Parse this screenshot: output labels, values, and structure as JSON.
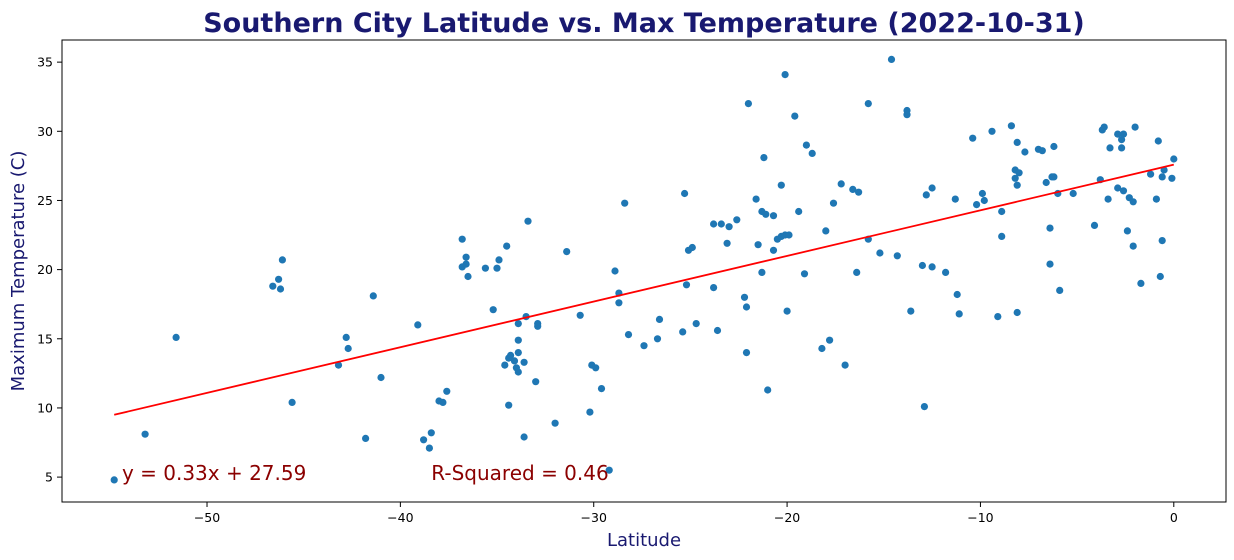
{
  "chart_data": {
    "type": "scatter",
    "title": "Southern City Latitude vs. Max Temperature (2022-10-31)",
    "xlabel": "Latitude",
    "ylabel": "Maximum Temperature (C)",
    "xlim": [
      -57.5,
      2.7
    ],
    "ylim": [
      3.2,
      36.6
    ],
    "xticks": [
      -50,
      -40,
      -30,
      -20,
      -10,
      0
    ],
    "xtick_labels": [
      "−50",
      "−40",
      "−30",
      "−20",
      "−10",
      "0"
    ],
    "yticks": [
      5,
      10,
      15,
      20,
      25,
      30,
      35
    ],
    "ytick_labels": [
      "5",
      "10",
      "15",
      "20",
      "25",
      "30",
      "35"
    ],
    "grid": false,
    "marker_color": "#1f77b4",
    "line_color": "#ff0000",
    "annotation_color": "#8b0000",
    "regression": {
      "slope": 0.33,
      "intercept": 27.59,
      "x_range": [
        -54.8,
        0
      ]
    },
    "annotations": [
      {
        "text": "y = 0.33x + 27.59",
        "x": -54.4,
        "y": 5.3
      },
      {
        "text": "R-Squared = 0.46",
        "x": -38.4,
        "y": 5.3
      }
    ],
    "points": [
      [
        -54.8,
        4.8
      ],
      [
        -53.2,
        8.1
      ],
      [
        -51.6,
        15.1
      ],
      [
        -46.6,
        18.8
      ],
      [
        -46.3,
        19.3
      ],
      [
        -46.2,
        18.6
      ],
      [
        -46.1,
        20.7
      ],
      [
        -45.6,
        10.4
      ],
      [
        -43.2,
        13.1
      ],
      [
        -42.8,
        15.1
      ],
      [
        -42.7,
        14.3
      ],
      [
        -41.8,
        7.8
      ],
      [
        -41.4,
        18.1
      ],
      [
        -41.0,
        12.2
      ],
      [
        -39.1,
        16.0
      ],
      [
        -38.8,
        7.7
      ],
      [
        -38.5,
        7.1
      ],
      [
        -38.4,
        8.2
      ],
      [
        -38.0,
        10.5
      ],
      [
        -37.8,
        10.4
      ],
      [
        -37.6,
        11.2
      ],
      [
        -36.8,
        22.2
      ],
      [
        -36.8,
        20.2
      ],
      [
        -36.6,
        20.9
      ],
      [
        -36.6,
        20.4
      ],
      [
        -36.5,
        19.5
      ],
      [
        -35.6,
        20.1
      ],
      [
        -35.2,
        17.1
      ],
      [
        -35.0,
        20.1
      ],
      [
        -34.9,
        20.7
      ],
      [
        -34.6,
        13.1
      ],
      [
        -34.5,
        21.7
      ],
      [
        -34.4,
        10.2
      ],
      [
        -34.4,
        13.6
      ],
      [
        -34.3,
        13.8
      ],
      [
        -34.1,
        13.4
      ],
      [
        -34.0,
        12.9
      ],
      [
        -33.9,
        12.6
      ],
      [
        -33.9,
        16.1
      ],
      [
        -33.9,
        14.9
      ],
      [
        -33.9,
        14.0
      ],
      [
        -33.6,
        13.3
      ],
      [
        -33.6,
        7.9
      ],
      [
        -33.5,
        16.6
      ],
      [
        -33.4,
        23.5
      ],
      [
        -33.0,
        11.9
      ],
      [
        -32.9,
        15.9
      ],
      [
        -32.9,
        16.1
      ],
      [
        -32.0,
        8.9
      ],
      [
        -31.4,
        21.3
      ],
      [
        -30.7,
        16.7
      ],
      [
        -30.2,
        9.7
      ],
      [
        -30.1,
        13.1
      ],
      [
        -29.9,
        12.9
      ],
      [
        -29.6,
        11.4
      ],
      [
        -29.2,
        5.5
      ],
      [
        -28.9,
        19.9
      ],
      [
        -28.7,
        17.6
      ],
      [
        -28.7,
        18.3
      ],
      [
        -28.4,
        24.8
      ],
      [
        -28.2,
        15.3
      ],
      [
        -27.4,
        14.5
      ],
      [
        -26.7,
        15.0
      ],
      [
        -26.6,
        16.4
      ],
      [
        -25.4,
        15.5
      ],
      [
        -25.3,
        25.5
      ],
      [
        -25.2,
        18.9
      ],
      [
        -25.1,
        21.4
      ],
      [
        -24.9,
        21.6
      ],
      [
        -24.7,
        16.1
      ],
      [
        -23.8,
        18.7
      ],
      [
        -23.8,
        23.3
      ],
      [
        -23.6,
        15.6
      ],
      [
        -23.4,
        23.3
      ],
      [
        -23.1,
        21.9
      ],
      [
        -23.0,
        23.1
      ],
      [
        -22.6,
        23.6
      ],
      [
        -22.2,
        18.0
      ],
      [
        -22.1,
        17.3
      ],
      [
        -22.1,
        14.0
      ],
      [
        -22.0,
        32.0
      ],
      [
        -21.6,
        25.1
      ],
      [
        -21.5,
        21.8
      ],
      [
        -21.3,
        24.2
      ],
      [
        -21.3,
        19.8
      ],
      [
        -21.2,
        28.1
      ],
      [
        -21.1,
        24.0
      ],
      [
        -21.0,
        11.3
      ],
      [
        -20.7,
        23.9
      ],
      [
        -20.7,
        21.4
      ],
      [
        -20.5,
        22.2
      ],
      [
        -20.3,
        22.4
      ],
      [
        -20.3,
        26.1
      ],
      [
        -20.1,
        22.5
      ],
      [
        -20.1,
        34.1
      ],
      [
        -20.0,
        17.0
      ],
      [
        -19.9,
        22.5
      ],
      [
        -19.6,
        31.1
      ],
      [
        -19.4,
        24.2
      ],
      [
        -19.1,
        19.7
      ],
      [
        -19.0,
        29.0
      ],
      [
        -18.7,
        28.4
      ],
      [
        -18.2,
        14.3
      ],
      [
        -18.0,
        22.8
      ],
      [
        -17.8,
        14.9
      ],
      [
        -17.6,
        24.8
      ],
      [
        -17.2,
        26.2
      ],
      [
        -17.0,
        13.1
      ],
      [
        -16.6,
        25.8
      ],
      [
        -16.4,
        19.8
      ],
      [
        -16.3,
        25.6
      ],
      [
        -15.8,
        32.0
      ],
      [
        -15.8,
        22.2
      ],
      [
        -15.2,
        21.2
      ],
      [
        -14.6,
        35.2
      ],
      [
        -14.3,
        21.0
      ],
      [
        -13.8,
        31.5
      ],
      [
        -13.8,
        31.2
      ],
      [
        -13.6,
        17.0
      ],
      [
        -13.0,
        20.3
      ],
      [
        -12.9,
        10.1
      ],
      [
        -12.8,
        25.4
      ],
      [
        -12.5,
        25.9
      ],
      [
        -12.5,
        20.2
      ],
      [
        -11.8,
        19.8
      ],
      [
        -11.3,
        25.1
      ],
      [
        -11.2,
        18.2
      ],
      [
        -11.1,
        16.8
      ],
      [
        -10.4,
        29.5
      ],
      [
        -10.2,
        24.7
      ],
      [
        -9.9,
        25.5
      ],
      [
        -9.8,
        25.0
      ],
      [
        -9.4,
        30.0
      ],
      [
        -9.1,
        16.6
      ],
      [
        -8.9,
        24.2
      ],
      [
        -8.9,
        22.4
      ],
      [
        -8.4,
        30.4
      ],
      [
        -8.2,
        27.2
      ],
      [
        -8.2,
        26.6
      ],
      [
        -8.1,
        29.2
      ],
      [
        -8.1,
        26.1
      ],
      [
        -8.1,
        16.9
      ],
      [
        -8.0,
        27.0
      ],
      [
        -7.7,
        28.5
      ],
      [
        -7.0,
        28.7
      ],
      [
        -6.8,
        28.6
      ],
      [
        -6.6,
        26.3
      ],
      [
        -6.4,
        20.4
      ],
      [
        -6.4,
        23.0
      ],
      [
        -6.3,
        26.7
      ],
      [
        -6.2,
        26.7
      ],
      [
        -6.2,
        28.9
      ],
      [
        -6.0,
        25.5
      ],
      [
        -5.9,
        18.5
      ],
      [
        -5.2,
        25.5
      ],
      [
        -4.1,
        23.2
      ],
      [
        -3.8,
        26.5
      ],
      [
        -3.7,
        30.1
      ],
      [
        -3.6,
        30.3
      ],
      [
        -3.4,
        25.1
      ],
      [
        -3.3,
        28.8
      ],
      [
        -2.9,
        29.8
      ],
      [
        -2.9,
        25.9
      ],
      [
        -2.7,
        29.4
      ],
      [
        -2.7,
        28.8
      ],
      [
        -2.6,
        29.8
      ],
      [
        -2.6,
        25.7
      ],
      [
        -2.4,
        22.8
      ],
      [
        -2.3,
        25.2
      ],
      [
        -2.1,
        24.9
      ],
      [
        -2.1,
        21.7
      ],
      [
        -2.0,
        30.3
      ],
      [
        -1.7,
        19.0
      ],
      [
        -1.2,
        26.9
      ],
      [
        -0.9,
        25.1
      ],
      [
        -0.8,
        29.3
      ],
      [
        -0.7,
        19.5
      ],
      [
        -0.6,
        22.1
      ],
      [
        -0.6,
        26.7
      ],
      [
        -0.5,
        27.2
      ],
      [
        -0.1,
        26.6
      ],
      [
        0.0,
        28.0
      ]
    ]
  }
}
